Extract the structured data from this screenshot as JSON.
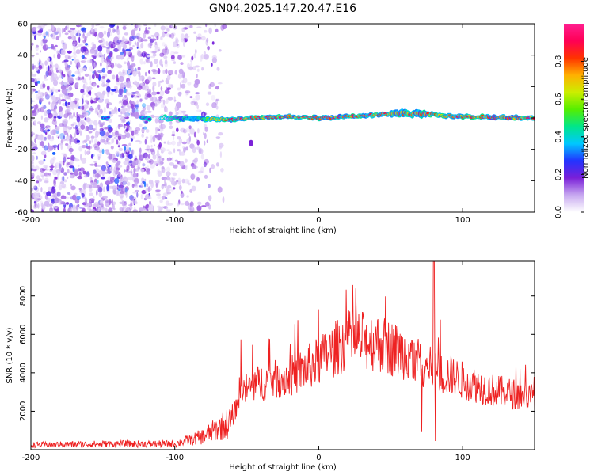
{
  "title": "GN04.2025.147.20.47.E16",
  "chart_data": [
    {
      "type": "heatmap",
      "xlabel": "Height of straight line (km)",
      "ylabel": "Frequency (Hz)",
      "xlim": [
        -200,
        150
      ],
      "ylim": [
        -60,
        60
      ],
      "xticks": [
        -200,
        -100,
        0,
        100
      ],
      "yticks": [
        60,
        40,
        20,
        0,
        -20,
        -40,
        -60
      ],
      "colorbar": {
        "label": "Normalized spectral amplitude",
        "range": [
          0,
          1
        ],
        "ticks": [
          "0.0",
          "0.2",
          "0.4",
          "0.6",
          "0.8"
        ],
        "colormap": [
          "#ffffff",
          "#c7a8f0",
          "#7a1fd8",
          "#2233ff",
          "#00c8ff",
          "#00e68a",
          "#55ee00",
          "#ccee00",
          "#ffb000",
          "#ff3300",
          "#ff0055",
          "#ff1f8f"
        ]
      },
      "noise_region_km": [
        -200,
        -65
      ],
      "signal_line": {
        "description_points_km_hz": [
          [
            -110,
            0
          ],
          [
            -60,
            -1
          ],
          [
            -20,
            1
          ],
          [
            0,
            0
          ],
          [
            60,
            3
          ],
          [
            100,
            1
          ],
          [
            150,
            0
          ]
        ],
        "peak_amplitude": 0.9
      }
    },
    {
      "type": "line",
      "xlabel": "Height of straight line (km)",
      "ylabel": "SNR (10 * v/v)",
      "xlim": [
        -200,
        150
      ],
      "ylim": [
        0,
        9800
      ],
      "xticks": [
        -200,
        -100,
        0,
        100
      ],
      "yticks": [
        2000,
        4000,
        6000,
        8000
      ],
      "color": "#ee2222",
      "envelope": {
        "x": [
          -200,
          -150,
          -100,
          -80,
          -60,
          -55,
          -40,
          -20,
          0,
          20,
          40,
          60,
          75,
          80,
          90,
          100,
          120,
          150
        ],
        "y": [
          250,
          300,
          300,
          700,
          1500,
          3000,
          3500,
          3800,
          4600,
          5700,
          5600,
          5000,
          4400,
          4000,
          3900,
          3600,
          3100,
          2700
        ]
      }
    }
  ]
}
